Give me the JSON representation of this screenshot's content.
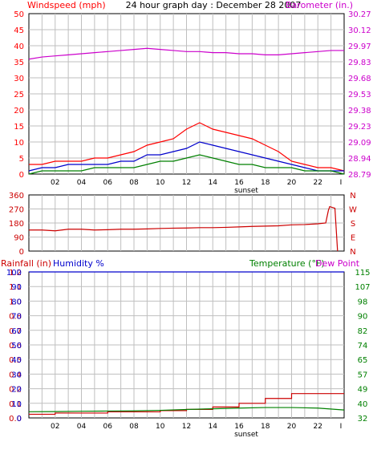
{
  "colors": {
    "red": "#ff0000",
    "dark_red": "#cc0000",
    "green": "#008000",
    "blue": "#0000cc",
    "magenta": "#cc00cc",
    "grid": "#bfbfbf",
    "frame": "#000000"
  },
  "chart_data": [
    {
      "type": "line",
      "title": "24 hour graph day : December 28 2007",
      "ylabel_left": "Windspeed (mph)",
      "ylabel_right": "Barometer (in.)",
      "x_ticks": [
        "02",
        "04",
        "06",
        "08",
        "10",
        "12",
        "14",
        "16",
        "18",
        "20",
        "22",
        "I"
      ],
      "x_annotation": "sunset",
      "ylim_left": [
        0,
        50
      ],
      "y_ticks_left": [
        "0",
        "5",
        "10",
        "15",
        "20",
        "25",
        "30",
        "35",
        "40",
        "45",
        "50"
      ],
      "ylim_right": [
        28.79,
        30.27
      ],
      "y_ticks_right": [
        "28.79",
        "28.94",
        "29.09",
        "29.23",
        "29.38",
        "29.53",
        "29.68",
        "29.83",
        "29.97",
        "30.12",
        "30.27"
      ],
      "grid": true,
      "x_hours": [
        0,
        1,
        2,
        3,
        4,
        5,
        6,
        7,
        8,
        9,
        10,
        11,
        12,
        13,
        14,
        15,
        16,
        17,
        18,
        19,
        20,
        21,
        22,
        23,
        24
      ],
      "series": [
        {
          "role": "barometer",
          "axis": "right",
          "values": [
            29.85,
            29.87,
            29.88,
            29.89,
            29.9,
            29.91,
            29.92,
            29.93,
            29.94,
            29.95,
            29.94,
            29.93,
            29.92,
            29.92,
            29.91,
            29.91,
            29.9,
            29.9,
            29.89,
            29.89,
            29.9,
            29.91,
            29.92,
            29.93,
            29.93
          ]
        },
        {
          "role": "gust",
          "axis": "left",
          "values": [
            3,
            3,
            4,
            4,
            4,
            5,
            5,
            6,
            7,
            9,
            10,
            11,
            14,
            16,
            14,
            13,
            12,
            11,
            9,
            7,
            4,
            3,
            2,
            2,
            1
          ]
        },
        {
          "role": "average",
          "axis": "left",
          "values": [
            1,
            2,
            2,
            3,
            3,
            3,
            3,
            4,
            4,
            6,
            6,
            7,
            8,
            10,
            9,
            8,
            7,
            6,
            5,
            4,
            3,
            2,
            1,
            1,
            1
          ]
        },
        {
          "role": "low",
          "axis": "left",
          "values": [
            0,
            1,
            1,
            1,
            1,
            2,
            2,
            2,
            2,
            3,
            4,
            4,
            5,
            6,
            5,
            4,
            3,
            3,
            2,
            2,
            2,
            1,
            1,
            1,
            0
          ]
        }
      ]
    },
    {
      "type": "line",
      "axis_label": "N W S E N",
      "x_ticks": [],
      "ylim": [
        0,
        360
      ],
      "y_ticks": [
        "360",
        "270",
        "180",
        "90",
        "0"
      ],
      "right_labels": [
        "N",
        "W",
        "S",
        "E",
        "N"
      ],
      "grid": true,
      "x_hours": [
        0,
        1,
        2,
        3,
        4,
        5,
        6,
        7,
        8,
        9,
        10,
        11,
        12,
        13,
        14,
        15,
        16,
        17,
        18,
        19,
        20,
        21,
        22,
        22.6,
        22.8,
        22.9,
        23.3,
        23.5
      ],
      "series": [
        {
          "role": "wind_direction",
          "values": [
            135,
            135,
            130,
            140,
            140,
            135,
            137,
            140,
            140,
            142,
            145,
            147,
            148,
            150,
            150,
            152,
            155,
            158,
            160,
            162,
            168,
            170,
            175,
            180,
            260,
            285,
            275,
            0
          ]
        }
      ]
    },
    {
      "type": "line",
      "ylabel_left_1": "Rainfall (in)",
      "ylabel_left_2": "Humidity %",
      "ylabel_right_1": "Temperature (°F)",
      "ylabel_right_2": "Dew Point",
      "x_ticks": [
        "02",
        "04",
        "06",
        "08",
        "10",
        "12",
        "14",
        "16",
        "18",
        "20",
        "22",
        "I"
      ],
      "x_annotation": "sunset",
      "ylim_humidity": [
        0,
        100
      ],
      "y_ticks_humidity": [
        "0",
        "10",
        "20",
        "30",
        "40",
        "50",
        "60",
        "70",
        "80",
        "90",
        "100"
      ],
      "ylim_rain": [
        0,
        1.2
      ],
      "y_ticks_rain": [
        "0.0",
        "0.1",
        "0.2",
        "0.4",
        "0.5",
        "0.6",
        "0.7",
        "0.8",
        "1.0",
        "1.1",
        "1.2"
      ],
      "ylim_temp": [
        32,
        115
      ],
      "y_ticks_temp": [
        "32",
        "40",
        "49",
        "57",
        "65",
        "74",
        "82",
        "90",
        "98",
        "107",
        "115"
      ],
      "grid": true,
      "x_hours": [
        0,
        2,
        4,
        6,
        8,
        10,
        12,
        14,
        16,
        18,
        20,
        22,
        24
      ],
      "series": [
        {
          "role": "humidity",
          "axis": "humidity",
          "values": [
            100,
            100,
            100,
            100,
            100,
            100,
            100,
            100,
            100,
            100,
            100,
            100,
            100
          ]
        },
        {
          "role": "rainfall",
          "axis": "rain",
          "step": true,
          "values": [
            0.03,
            0.04,
            0.04,
            0.05,
            0.05,
            0.06,
            0.07,
            0.09,
            0.12,
            0.16,
            0.2,
            0.2,
            0.2
          ]
        },
        {
          "role": "temperature",
          "axis": "temp",
          "values": [
            35.5,
            35.6,
            35.8,
            35.9,
            36.0,
            36.3,
            36.8,
            37.2,
            37.6,
            37.9,
            37.9,
            37.6,
            36.5
          ]
        }
      ]
    }
  ]
}
